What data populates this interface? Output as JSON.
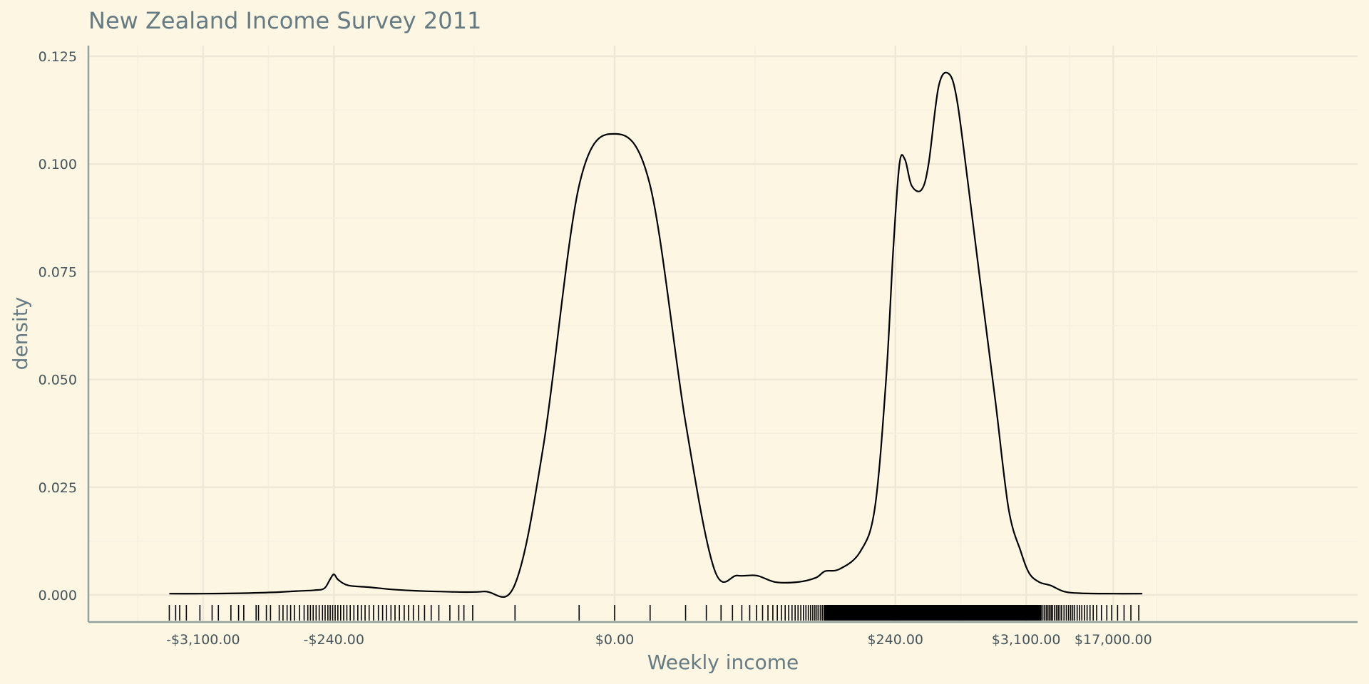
{
  "chart_data": {
    "type": "line",
    "title": "New Zealand Income Survey 2011",
    "xlabel": "Weekly income",
    "ylabel": "density",
    "x_scale": "modulus-transformed (signed log)",
    "x_tick_labels": [
      "-$3,100.00",
      "-$240.00",
      "$0.00",
      "$240.00",
      "$3,100.00",
      "$17,000.00"
    ],
    "x_tick_values": [
      -3100,
      -240,
      0,
      240,
      3100,
      17000
    ],
    "y_tick_labels": [
      "0.000",
      "0.025",
      "0.050",
      "0.075",
      "0.100",
      "0.125"
    ],
    "y_tick_values": [
      0,
      0.025,
      0.05,
      0.075,
      0.1,
      0.125
    ],
    "ylim": [
      0,
      0.13
    ],
    "grid": true,
    "series": [
      {
        "values": [
          [
            -6000,
            0.0003
          ],
          [
            -3100,
            0.0003
          ],
          [
            -1500,
            0.0004
          ],
          [
            -800,
            0.0006
          ],
          [
            -500,
            0.0009
          ],
          [
            -350,
            0.0011
          ],
          [
            -290,
            0.0015
          ],
          [
            -260,
            0.0035
          ],
          [
            -240,
            0.0048
          ],
          [
            -220,
            0.0035
          ],
          [
            -180,
            0.0022
          ],
          [
            -120,
            0.0018
          ],
          [
            -70,
            0.0012
          ],
          [
            -30,
            0.0008
          ],
          [
            -12,
            0.0008
          ],
          [
            -6,
            0.0025
          ],
          [
            -3,
            0.035
          ],
          [
            -1,
            0.095
          ],
          [
            0,
            0.107
          ],
          [
            1,
            0.095
          ],
          [
            3,
            0.04
          ],
          [
            6,
            0.006
          ],
          [
            10,
            0.0045
          ],
          [
            15,
            0.0045
          ],
          [
            22,
            0.003
          ],
          [
            35,
            0.003
          ],
          [
            50,
            0.004
          ],
          [
            60,
            0.0055
          ],
          [
            80,
            0.006
          ],
          [
            120,
            0.01
          ],
          [
            160,
            0.02
          ],
          [
            200,
            0.05
          ],
          [
            230,
            0.08
          ],
          [
            260,
            0.1
          ],
          [
            290,
            0.101
          ],
          [
            330,
            0.095
          ],
          [
            400,
            0.094
          ],
          [
            460,
            0.1
          ],
          [
            560,
            0.118
          ],
          [
            680,
            0.121
          ],
          [
            800,
            0.115
          ],
          [
            1000,
            0.095
          ],
          [
            1300,
            0.07
          ],
          [
            1700,
            0.045
          ],
          [
            2200,
            0.02
          ],
          [
            2800,
            0.01
          ],
          [
            3300,
            0.005
          ],
          [
            4000,
            0.003
          ],
          [
            5000,
            0.0022
          ],
          [
            6500,
            0.0008
          ],
          [
            9000,
            0.0004
          ],
          [
            17000,
            0.0003
          ],
          [
            30000,
            0.0003
          ]
        ]
      }
    ],
    "rug": [
      -6000,
      -5300,
      -4900,
      -4300,
      -3300,
      -2600,
      -2300,
      -1800,
      -1550,
      -1400,
      -1100,
      -1050,
      -900,
      -830,
      -700,
      -650,
      -600,
      -560,
      -520,
      -470,
      -430,
      -400,
      -380,
      -360,
      -340,
      -320,
      -300,
      -285,
      -270,
      -258,
      -246,
      -234,
      -222,
      -210,
      -198,
      -186,
      -174,
      -162,
      -150,
      -140,
      -130,
      -120,
      -110,
      -100,
      -92,
      -85,
      -78,
      -72,
      -66,
      -60,
      -55,
      -50,
      -45,
      -40,
      -35,
      -30,
      -24,
      -20,
      -18,
      -15,
      -6,
      -1,
      0,
      1,
      3,
      5,
      7,
      9,
      11,
      13,
      15,
      17,
      19,
      21,
      23,
      25,
      27,
      29,
      31,
      33,
      35,
      37,
      39,
      41,
      43,
      45,
      47,
      49,
      51,
      53,
      55,
      57,
      59,
      60,
      4300,
      4450,
      4600,
      4750,
      4900,
      5050,
      5200,
      5400,
      5600,
      5800,
      6000,
      6200,
      6500,
      6800,
      7100,
      7400,
      7700,
      8000,
      8400,
      8800,
      9200,
      9700,
      10200,
      10800,
      11500,
      12300,
      13500,
      15000,
      16500,
      18500,
      21000,
      24000,
      28000
    ],
    "rug_dense_range": [
      60,
      4200
    ]
  }
}
